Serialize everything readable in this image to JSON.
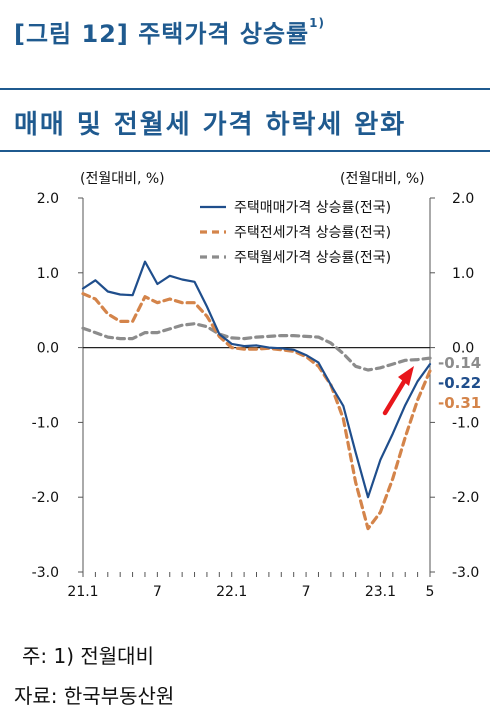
{
  "figure": {
    "title": "[그림 12] 주택가격 상승률",
    "title_sup": "1)",
    "subtitle": "매매 및 전월세 가격 하락세 완화"
  },
  "chart_data": {
    "type": "line",
    "left_unit": "(전월대비, %)",
    "right_unit": "(전월대비, %)",
    "ylim": [
      -3.0,
      2.0
    ],
    "y_ticks": [
      "2.0",
      "1.0",
      "0.0",
      "-1.0",
      "-2.0",
      "-3.0"
    ],
    "x_tick_labels": [
      {
        "index": 0,
        "label": "21.1"
      },
      {
        "index": 6,
        "label": "7"
      },
      {
        "index": 12,
        "label": "22.1"
      },
      {
        "index": 18,
        "label": "7"
      },
      {
        "index": 24,
        "label": "23.1"
      },
      {
        "index": 28,
        "label": "5"
      }
    ],
    "x_count": 29,
    "series": [
      {
        "name": "주택매매가격 상승률(전국)",
        "style": "solid",
        "color": "#1f4e8c",
        "values": [
          0.79,
          0.9,
          0.75,
          0.71,
          0.7,
          1.15,
          0.85,
          0.96,
          0.91,
          0.88,
          0.55,
          0.18,
          0.05,
          0.02,
          0.03,
          0.0,
          -0.01,
          -0.03,
          -0.1,
          -0.2,
          -0.5,
          -0.78,
          -1.4,
          -2.0,
          -1.5,
          -1.15,
          -0.77,
          -0.45,
          -0.22
        ]
      },
      {
        "name": "주택전세가격 상승률(전국)",
        "style": "dashed",
        "color": "#d4844a",
        "values": [
          0.72,
          0.65,
          0.45,
          0.35,
          0.35,
          0.68,
          0.6,
          0.65,
          0.6,
          0.6,
          0.42,
          0.15,
          0.0,
          -0.02,
          -0.02,
          -0.01,
          -0.03,
          -0.05,
          -0.12,
          -0.25,
          -0.5,
          -0.95,
          -1.8,
          -2.42,
          -2.2,
          -1.75,
          -1.2,
          -0.7,
          -0.31
        ]
      },
      {
        "name": "주택월세가격 상승률(전국)",
        "style": "dashed",
        "color": "#8c8c8c",
        "values": [
          0.26,
          0.2,
          0.14,
          0.12,
          0.12,
          0.2,
          0.2,
          0.25,
          0.3,
          0.32,
          0.28,
          0.18,
          0.13,
          0.12,
          0.14,
          0.15,
          0.16,
          0.16,
          0.15,
          0.14,
          0.06,
          -0.08,
          -0.25,
          -0.3,
          -0.27,
          -0.22,
          -0.17,
          -0.16,
          -0.14
        ]
      }
    ],
    "end_labels": [
      {
        "text": "-0.14",
        "color": "#8c8c8c"
      },
      {
        "text": "-0.22",
        "color": "#1f4e8c"
      },
      {
        "text": "-0.31",
        "color": "#d4844a"
      }
    ],
    "legend_position": "top-right",
    "arrow_color": "#e8161b"
  },
  "footer": {
    "note": "주: 1) 전월대비",
    "source": "자료: 한국부동산원"
  }
}
